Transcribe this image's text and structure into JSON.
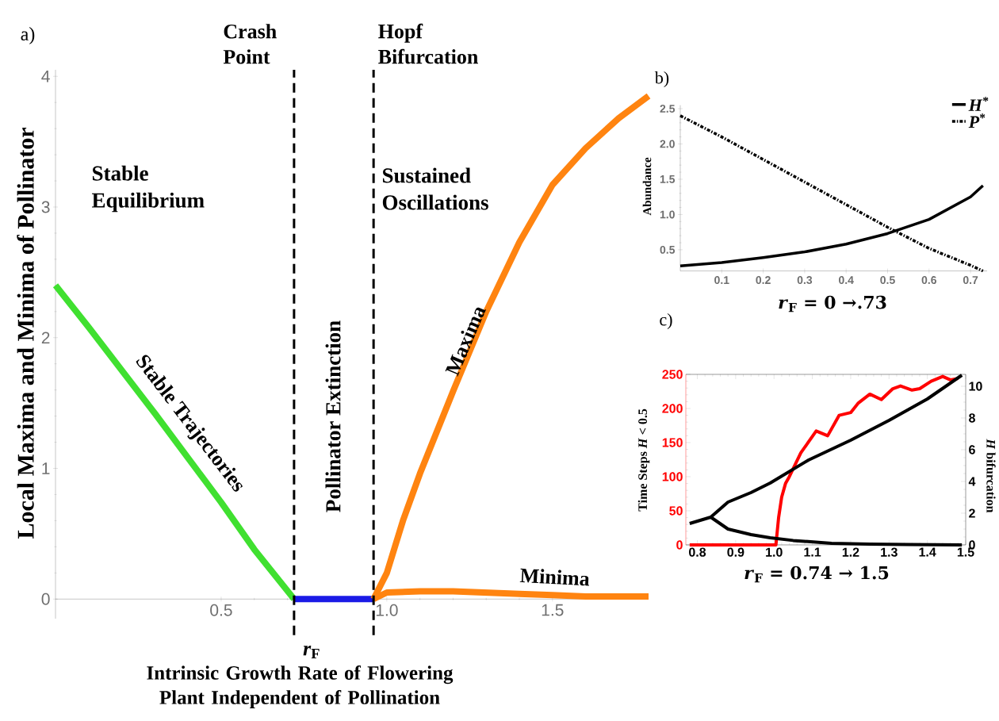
{
  "chart_data": [
    {
      "type": "line",
      "xlabel": "*r*$_{F}$",
      "ylabel": "Local Maxima and Minima of Pollinator",
      "xlim": [
        0,
        1.79
      ],
      "ylim": [
        -0.15,
        4.05
      ],
      "xticks": [
        0.5,
        {
          "value": 1,
          "label": "1.0"
        },
        1.5
      ],
      "yticks": [
        0,
        1,
        2,
        3,
        4
      ],
      "series": [
        {
          "name": "Stable Trajectories",
          "color": "#40e030",
          "x": [
            0,
            0.1,
            0.2,
            0.3,
            0.4,
            0.5,
            0.6,
            0.72
          ],
          "values": [
            2.4,
            2.08,
            1.75,
            1.42,
            1.08,
            0.74,
            0.38,
            0
          ]
        },
        {
          "color": "#1a1ae6",
          "x": [
            0.72,
            0.96
          ],
          "values": [
            0,
            0
          ]
        },
        {
          "name": "Maxima",
          "color": "#ff8410",
          "x": [
            0.96,
            1.0,
            1.05,
            1.1,
            1.2,
            1.3,
            1.4,
            1.5,
            1.6,
            1.7,
            1.79
          ],
          "values": [
            0,
            0.2,
            0.61,
            0.96,
            1.59,
            2.2,
            2.73,
            3.17,
            3.45,
            3.68,
            3.85
          ]
        },
        {
          "name": "Minima",
          "color": "#ff8410",
          "x": [
            0.96,
            1.0,
            1.1,
            1.2,
            1.3,
            1.4,
            1.5,
            1.6,
            1.7,
            1.79
          ],
          "values": [
            0,
            0.05,
            0.06,
            0.06,
            0.05,
            0.04,
            0.03,
            0.02,
            0.02,
            0.02
          ]
        }
      ],
      "ref_lines": [
        {
          "axis": "x",
          "value": 0.72,
          "label": "Crash Point",
          "color": "#000000",
          "line_style": "dashed"
        },
        {
          "axis": "x",
          "value": 0.96,
          "label": "Hopf Bifurcation",
          "color": "#000000",
          "line_style": "dashed"
        }
      ],
      "annotations": [
        "a)",
        "Stable Equilibrium",
        "Pollinator Extinction",
        "Sustained Oscillations",
        "Intrinsic Growth Rate of Flowering Plant Independent of Pollination"
      ]
    },
    {
      "type": "line",
      "xlabel": "*r*$_{F}$ = 0 →.73",
      "ylabel": "Abundance",
      "xlim": [
        0,
        0.74
      ],
      "ylim": [
        0.2,
        2.55
      ],
      "xticks": [
        0.1,
        0.2,
        0.3,
        0.4,
        0.5,
        0.6,
        0.7
      ],
      "yticks": [
        0.5,
        {
          "value": 1,
          "label": "1.0"
        },
        1.5,
        {
          "value": 2,
          "label": "2.0"
        },
        2.5
      ],
      "legend": "top right",
      "series": [
        {
          "name": "*H*$^{*}$",
          "color": "#000000",
          "line_style": "solid",
          "x": [
            0,
            0.1,
            0.2,
            0.3,
            0.4,
            0.5,
            0.6,
            0.7,
            0.73
          ],
          "values": [
            0.27,
            0.32,
            0.39,
            0.47,
            0.58,
            0.73,
            0.93,
            1.25,
            1.41
          ]
        },
        {
          "name": "*P*$^{*}$",
          "color": "#000000",
          "line_style": "dotted",
          "x": [
            0,
            0.1,
            0.2,
            0.3,
            0.4,
            0.5,
            0.6,
            0.7,
            0.73
          ],
          "values": [
            2.4,
            2.1,
            1.78,
            1.46,
            1.14,
            0.82,
            0.52,
            0.28,
            0.2
          ]
        }
      ],
      "annotations": [
        "b)"
      ]
    },
    {
      "type": "line",
      "xlabel": "*r*$_{F}$ = 0.74 → 1.5",
      "ylabel": "Time Steps *H* < 0.5",
      "y2label": "*H* bifurcation",
      "xlim": [
        0.77,
        1.5
      ],
      "ylim": [
        0,
        250
      ],
      "y2lim": [
        0,
        10.75
      ],
      "xticks": [
        0.8,
        0.9,
        {
          "value": 1,
          "label": "1.0"
        },
        1.1,
        1.2,
        1.3,
        1.4,
        1.5
      ],
      "yticks": [
        0,
        50,
        100,
        150,
        200,
        250
      ],
      "y2ticks": [
        0,
        2,
        4,
        6,
        8,
        10
      ],
      "series": [
        {
          "color": "#ff0000",
          "axis": "y",
          "x": [
            0.78,
            1.005,
            1.012,
            1.02,
            1.03,
            1.04,
            1.07,
            1.11,
            1.14,
            1.17,
            1.2,
            1.22,
            1.25,
            1.28,
            1.31,
            1.33,
            1.36,
            1.38,
            1.41,
            1.44,
            1.46,
            1.48
          ],
          "values": [
            0,
            0,
            40,
            70,
            90,
            100,
            135,
            167,
            160,
            190,
            194,
            208,
            221,
            213,
            229,
            233,
            227,
            229,
            240,
            247,
            242,
            244
          ]
        },
        {
          "color": "#000000",
          "axis": "y2",
          "x": [
            0.78,
            0.835,
            0.88,
            0.94,
            0.99,
            1.09,
            1.2,
            1.3,
            1.4,
            1.49
          ],
          "values": [
            1.35,
            1.75,
            2.7,
            3.3,
            3.9,
            5.35,
            6.6,
            7.85,
            9.2,
            10.7
          ]
        },
        {
          "color": "#000000",
          "axis": "y2",
          "x": [
            0.835,
            0.88,
            0.94,
            0.99,
            1.05,
            1.15,
            1.25,
            1.35,
            1.49
          ],
          "values": [
            1.75,
            1.0,
            0.65,
            0.45,
            0.28,
            0.1,
            0.05,
            0.02,
            0.0
          ]
        }
      ],
      "annotations": [
        "c)"
      ]
    }
  ]
}
